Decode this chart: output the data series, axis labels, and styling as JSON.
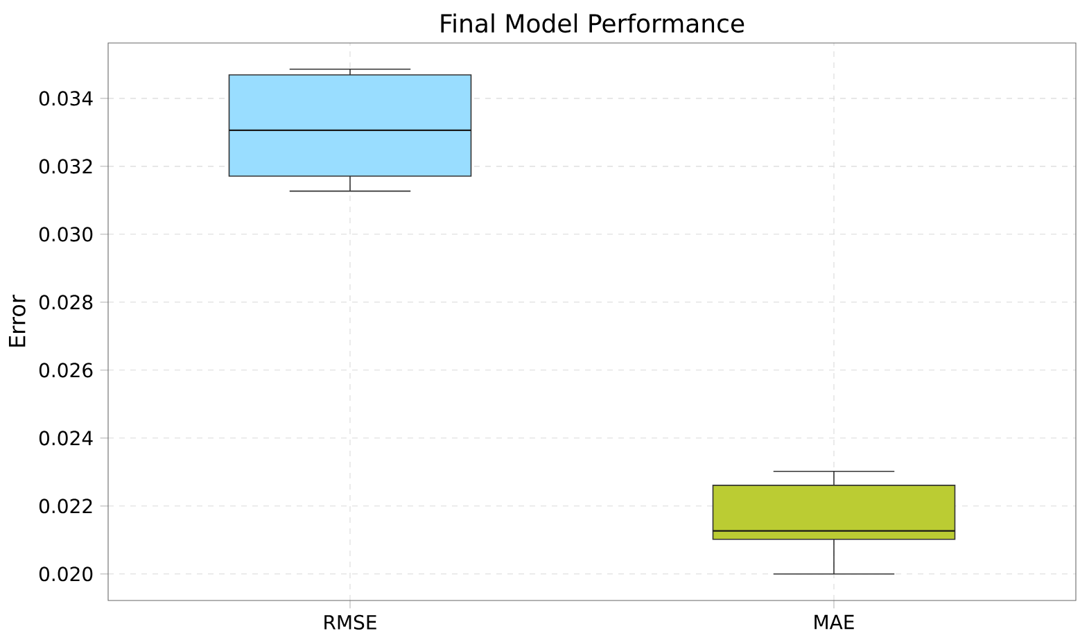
{
  "chart_data": {
    "type": "box",
    "title": "Final Model Performance",
    "ylabel": "Error",
    "categories": [
      "RMSE",
      "MAE"
    ],
    "boxes": [
      {
        "low": 0.03127,
        "q1": 0.03171,
        "median": 0.03306,
        "q3": 0.03469,
        "high": 0.03486
      },
      {
        "low": 0.02,
        "q1": 0.02102,
        "median": 0.02127,
        "q3": 0.02261,
        "high": 0.02302
      }
    ],
    "colors": [
      "#99ddff",
      "#bbcc33"
    ],
    "ylim": [
      0.01922,
      0.03563
    ],
    "yticks": [
      {
        "value": 0.02,
        "label": "0.020"
      },
      {
        "value": 0.022,
        "label": "0.022"
      },
      {
        "value": 0.024,
        "label": "0.024"
      },
      {
        "value": 0.026,
        "label": "0.026"
      },
      {
        "value": 0.028,
        "label": "0.028"
      },
      {
        "value": 0.03,
        "label": "0.030"
      },
      {
        "value": 0.032,
        "label": "0.032"
      },
      {
        "value": 0.034,
        "label": "0.034"
      }
    ],
    "grid": true
  }
}
